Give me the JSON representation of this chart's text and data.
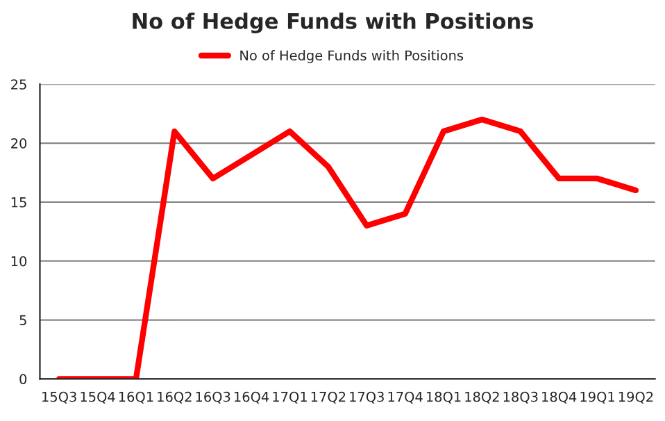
{
  "chart_data": {
    "type": "line",
    "title": "No of Hedge Funds with Positions",
    "categories": [
      "15Q3",
      "15Q4",
      "16Q1",
      "16Q2",
      "16Q3",
      "16Q4",
      "17Q1",
      "17Q2",
      "17Q3",
      "17Q4",
      "18Q1",
      "18Q2",
      "18Q3",
      "18Q4",
      "19Q1",
      "19Q2"
    ],
    "series": [
      {
        "name": "No of Hedge Funds with Positions",
        "color": "#ff0000",
        "values": [
          0,
          0,
          0,
          21,
          17,
          19,
          21,
          18,
          13,
          14,
          21,
          22,
          21,
          17,
          17,
          16
        ]
      }
    ],
    "ylim": [
      0,
      25
    ],
    "yticks": [
      0,
      5,
      10,
      15,
      20,
      25
    ],
    "grid": "y",
    "legend": "top",
    "marker": "none",
    "line_style": "solid"
  }
}
